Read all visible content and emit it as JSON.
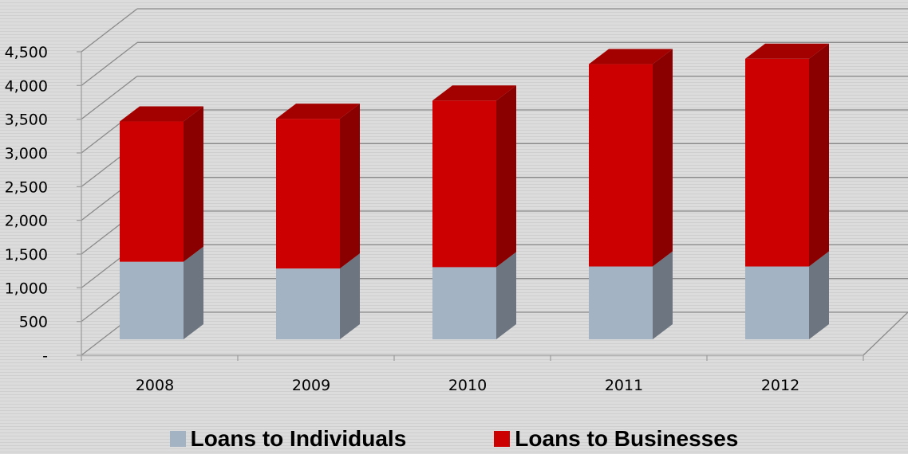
{
  "chart_data": {
    "type": "bar",
    "stacked": true,
    "three_d": true,
    "categories": [
      "2008",
      "2009",
      "2010",
      "2011",
      "2012"
    ],
    "series": [
      {
        "name": "Loans to Individuals",
        "values": [
          1150,
          1050,
          1070,
          1080,
          1080
        ]
      },
      {
        "name": "Loans to Businesses",
        "values": [
          2080,
          2220,
          2470,
          3000,
          3080
        ]
      }
    ],
    "ylim": [
      0,
      4500
    ],
    "yticks": [
      0,
      500,
      1000,
      1500,
      2000,
      2500,
      3000,
      3500,
      4000,
      4500
    ],
    "ytick_labels": [
      "-",
      "500",
      "1,000",
      "1,500",
      "2,000",
      "2,500",
      "3,000",
      "3,500",
      "4,000",
      "4,500"
    ],
    "grid": true,
    "legend_position": "bottom",
    "colors": {
      "individuals_front": "#a3b3c4",
      "individuals_side": "#6d7680",
      "individuals_top": "#8e9bab",
      "businesses_front": "#cc0000",
      "businesses_side": "#8a0000",
      "businesses_top": "#a30000",
      "grid": "#8a8a8a",
      "axis": "#a0a0a0"
    }
  },
  "legend": {
    "items": [
      {
        "label": "Loans to Individuals",
        "color": "#a3b3c4"
      },
      {
        "label": "Loans to Businesses",
        "color": "#cc0000"
      }
    ]
  }
}
